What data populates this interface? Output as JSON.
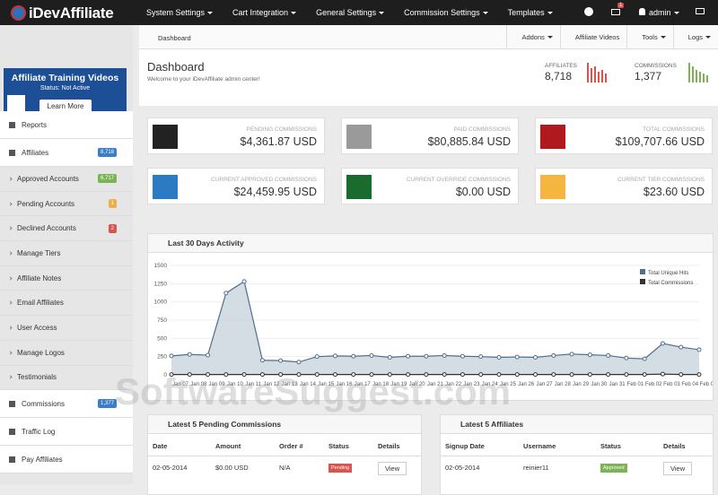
{
  "brand": "iDevAffiliate",
  "top_nav": [
    "System Settings",
    "Cart Integration",
    "General Settings",
    "Commission Settings",
    "Templates"
  ],
  "notification_count": "1",
  "user": "admin",
  "promo": {
    "title": "Affiliate Training Videos",
    "status": "Status: Not Active",
    "button": "Learn More",
    "icon_label": "MPEG"
  },
  "sidebar": [
    {
      "label": "Reports",
      "sub": false
    },
    {
      "label": "Affiliates",
      "sub": false,
      "badge": "8,718",
      "badge_color": "#3a7dc9"
    },
    {
      "label": "Approved Accounts",
      "sub": true,
      "badge": "6,717",
      "badge_color": "#7cb357"
    },
    {
      "label": "Pending Accounts",
      "sub": true,
      "badge": "1",
      "badge_color": "#f0ad4e"
    },
    {
      "label": "Declined Accounts",
      "sub": true,
      "badge": "2",
      "badge_color": "#d9534f"
    },
    {
      "label": "Manage Tiers",
      "sub": true
    },
    {
      "label": "Affiliate Notes",
      "sub": true
    },
    {
      "label": "Email Affiliates",
      "sub": true
    },
    {
      "label": "User Access",
      "sub": true
    },
    {
      "label": "Manage Logos",
      "sub": true
    },
    {
      "label": "Testimonials",
      "sub": true
    },
    {
      "label": "Commissions",
      "sub": false,
      "badge": "1,377",
      "badge_color": "#3a7dc9"
    },
    {
      "label": "Traffic Log",
      "sub": false
    },
    {
      "label": "Pay Affiliates",
      "sub": false
    }
  ],
  "breadcrumb": "Dashboard",
  "toolbar": [
    "Addons",
    "Affiliate Videos",
    "Tools",
    "Logs"
  ],
  "header": {
    "title": "Dashboard",
    "subtitle": "Welcome to your iDevAffiliate admin center!",
    "affiliates_label": "AFFILIATES",
    "affiliates_value": "8,718",
    "commissions_label": "COMMISSIONS",
    "commissions_value": "1,377"
  },
  "stats": [
    {
      "label": "PENDING COMMISSIONS",
      "value": "$4,361.87 USD",
      "color": "#222222"
    },
    {
      "label": "PAID COMMISSIONS",
      "value": "$80,885.84 USD",
      "color": "#9a9a9a"
    },
    {
      "label": "TOTAL COMMISSIONS",
      "value": "$109,707.66 USD",
      "color": "#b0191e"
    },
    {
      "label": "CURRENT APPROVED COMMISSIONS",
      "value": "$24,459.95 USD",
      "color": "#2a7ac4"
    },
    {
      "label": "CURRENT OVERRIDE COMMISSIONS",
      "value": "$0.00 USD",
      "color": "#1a6b2e"
    },
    {
      "label": "CURRENT TIER COMMISSIONS",
      "value": "$23.60 USD",
      "color": "#f5b53f"
    }
  ],
  "chart_data": {
    "type": "line",
    "title": "Last 30 Days Activity",
    "categories": [
      "Jan 07",
      "Jan 08",
      "Jan 09",
      "Jan 10",
      "Jan 11",
      "Jan 12",
      "Jan 13",
      "Jan 14",
      "Jan 15",
      "Jan 16",
      "Jan 17",
      "Jan 18",
      "Jan 19",
      "Jan 20",
      "Jan 21",
      "Jan 22",
      "Jan 23",
      "Jan 24",
      "Jan 25",
      "Jan 26",
      "Jan 27",
      "Jan 28",
      "Jan 29",
      "Jan 30",
      "Jan 31",
      "Feb 01",
      "Feb 02",
      "Feb 03",
      "Feb 04",
      "Feb 05"
    ],
    "series": [
      {
        "name": "Total Unique Hits",
        "color": "#4f6f8f",
        "fill": "#c9d3dd",
        "values": [
          260,
          280,
          270,
          1120,
          1280,
          200,
          195,
          175,
          250,
          260,
          255,
          265,
          240,
          255,
          255,
          265,
          255,
          250,
          240,
          245,
          240,
          265,
          285,
          275,
          265,
          230,
          220,
          430,
          380,
          345
        ]
      },
      {
        "name": "Total Commissions",
        "color": "#333333",
        "values": [
          5,
          5,
          5,
          5,
          5,
          5,
          5,
          5,
          5,
          5,
          5,
          5,
          5,
          5,
          5,
          5,
          5,
          5,
          5,
          5,
          5,
          5,
          5,
          5,
          5,
          5,
          5,
          10,
          5,
          5
        ]
      }
    ],
    "ylim": [
      0,
      1500
    ],
    "yticks": [
      0,
      250,
      500,
      750,
      1000,
      1250,
      1500
    ]
  },
  "tables": [
    {
      "title": "Latest 5 Pending Commissions",
      "columns": [
        "Date",
        "Amount",
        "Order #",
        "Status",
        "Details"
      ],
      "rows": [
        [
          "02-05-2014",
          "$0.00 USD",
          "N/A",
          "Pending",
          "View"
        ]
      ],
      "status_color": "#d9534f"
    },
    {
      "title": "Latest 5 Affiliates",
      "columns": [
        "Signup Date",
        "Username",
        "Status",
        "Details"
      ],
      "rows": [
        [
          "02-05-2014",
          "reinier11",
          "Approved",
          "View"
        ]
      ],
      "status_color": "#7cb357"
    }
  ],
  "watermark": "SoftwareSuggest.com"
}
